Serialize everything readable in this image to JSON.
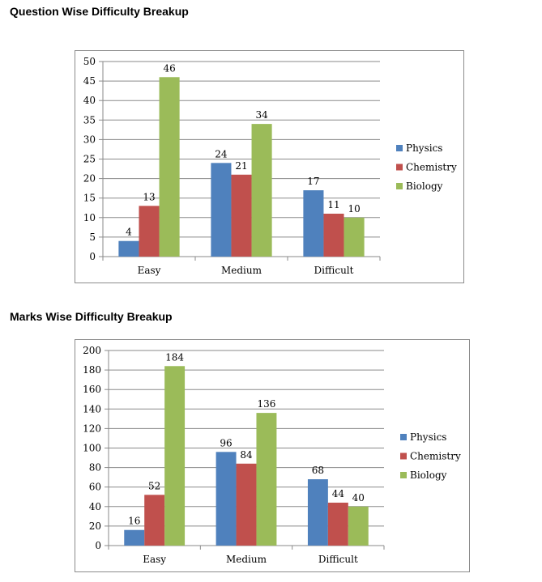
{
  "sections": [
    {
      "title": "Question Wise Difficulty Breakup"
    },
    {
      "title": "Marks Wise Difficulty Breakup"
    }
  ],
  "chart_data": [
    {
      "type": "bar",
      "title": "",
      "xlabel": "",
      "ylabel": "",
      "categories": [
        "Easy",
        "Medium",
        "Difficult"
      ],
      "ylim": [
        0,
        50
      ],
      "yticks": [
        0,
        5,
        10,
        15,
        20,
        25,
        30,
        35,
        40,
        45,
        50
      ],
      "grid": true,
      "legend_position": "right",
      "series": [
        {
          "name": "Physics",
          "color": "#4f81bd",
          "values": [
            4,
            24,
            17
          ]
        },
        {
          "name": "Chemistry",
          "color": "#c0504d",
          "values": [
            13,
            21,
            11
          ]
        },
        {
          "name": "Biology",
          "color": "#9bbb59",
          "values": [
            46,
            34,
            10
          ]
        }
      ]
    },
    {
      "type": "bar",
      "title": "",
      "xlabel": "",
      "ylabel": "",
      "categories": [
        "Easy",
        "Medium",
        "Difficult"
      ],
      "ylim": [
        0,
        200
      ],
      "yticks": [
        0,
        20,
        40,
        60,
        80,
        100,
        120,
        140,
        160,
        180,
        200
      ],
      "grid": true,
      "legend_position": "right",
      "series": [
        {
          "name": "Physics",
          "color": "#4f81bd",
          "values": [
            16,
            96,
            68
          ]
        },
        {
          "name": "Chemistry",
          "color": "#c0504d",
          "values": [
            52,
            84,
            44
          ]
        },
        {
          "name": "Biology",
          "color": "#9bbb59",
          "values": [
            184,
            136,
            40
          ]
        }
      ]
    }
  ]
}
